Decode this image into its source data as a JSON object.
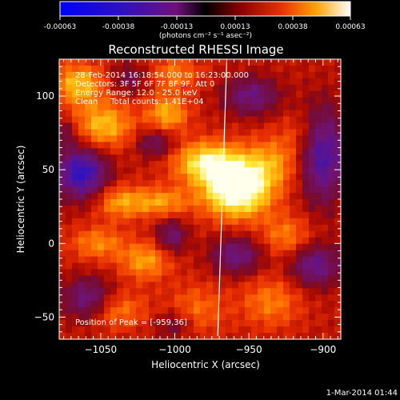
{
  "colorbar": {
    "ticks": [
      "-0.00063",
      "-0.00038",
      "-0.00013",
      "0.00013",
      "0.00038",
      "0.00063"
    ],
    "units": "(photons cm⁻² s⁻¹ asec⁻²)",
    "range": [
      -0.00063,
      0.00063
    ]
  },
  "chart_data": {
    "type": "heatmap",
    "title": "Reconstructed RHESSI Image",
    "xlabel": "Heliocentric X (arcsec)",
    "ylabel": "Heliocentric Y (arcsec)",
    "xlim": [
      -1078,
      -888
    ],
    "ylim": [
      -65,
      125
    ],
    "x_ticks": [
      {
        "value": -1050,
        "label": "−1050"
      },
      {
        "value": -1000,
        "label": "−1000"
      },
      {
        "value": -950,
        "label": "−950"
      },
      {
        "value": -900,
        "label": "−900"
      }
    ],
    "y_ticks": [
      {
        "value": -50,
        "label": "−50"
      },
      {
        "value": 0,
        "label": "0"
      },
      {
        "value": 50,
        "label": "50"
      },
      {
        "value": 100,
        "label": "100"
      }
    ],
    "info_lines": [
      "28-Feb-2014 16:18:54.000 to 16:23:00.000",
      "Detectors: 3F 5F 6F 7F 8F 9F, Att 0",
      "Energy Range: 12.0 - 25.0 keV",
      "Clean     Total counts: 1.41E+04"
    ],
    "peak_label": "Position of Peak = [-959,36]",
    "peak": {
      "x": -959,
      "y": 36
    },
    "limb_line": {
      "x_top": -965,
      "x_bottom": -971
    },
    "colormap": "red-temperature",
    "blobs": [
      {
        "x": -958,
        "y": 36,
        "sx": 16,
        "sy": 13,
        "v": 1.0
      },
      {
        "x": -978,
        "y": 55,
        "sx": 16,
        "sy": 10,
        "v": 0.7
      },
      {
        "x": -935,
        "y": 55,
        "sx": 14,
        "sy": 12,
        "v": 0.4
      },
      {
        "x": -1010,
        "y": 28,
        "sx": 14,
        "sy": 7,
        "v": 0.45
      },
      {
        "x": -1038,
        "y": 28,
        "sx": 11,
        "sy": 8,
        "v": 0.42
      },
      {
        "x": -1048,
        "y": 80,
        "sx": 14,
        "sy": 11,
        "v": 0.55
      },
      {
        "x": -1005,
        "y": 88,
        "sx": 10,
        "sy": 9,
        "v": 0.5
      },
      {
        "x": -1065,
        "y": 108,
        "sx": 12,
        "sy": 10,
        "v": 0.55
      },
      {
        "x": -1000,
        "y": 115,
        "sx": 12,
        "sy": 8,
        "v": 0.35
      },
      {
        "x": -1052,
        "y": 0,
        "sx": 13,
        "sy": 8,
        "v": 0.38
      },
      {
        "x": -1020,
        "y": -12,
        "sx": 12,
        "sy": 9,
        "v": 0.45
      },
      {
        "x": -925,
        "y": 5,
        "sx": 12,
        "sy": 10,
        "v": 0.35
      },
      {
        "x": -1040,
        "y": -45,
        "sx": 14,
        "sy": 9,
        "v": 0.38
      },
      {
        "x": -985,
        "y": -45,
        "sx": 14,
        "sy": 12,
        "v": 0.3
      },
      {
        "x": -935,
        "y": -40,
        "sx": 14,
        "sy": 12,
        "v": 0.35
      },
      {
        "x": -915,
        "y": 75,
        "sx": 10,
        "sy": 10,
        "v": 0.2
      },
      {
        "x": -1063,
        "y": 48,
        "sx": 12,
        "sy": 12,
        "v": -0.85
      },
      {
        "x": -1058,
        "y": -38,
        "sx": 12,
        "sy": 10,
        "v": -0.55
      },
      {
        "x": -900,
        "y": 60,
        "sx": 11,
        "sy": 22,
        "v": -0.7
      },
      {
        "x": -948,
        "y": 100,
        "sx": 13,
        "sy": 9,
        "v": -0.5
      },
      {
        "x": -1013,
        "y": 68,
        "sx": 9,
        "sy": 7,
        "v": -0.4
      },
      {
        "x": -958,
        "y": -8,
        "sx": 12,
        "sy": 9,
        "v": -0.5
      },
      {
        "x": -1002,
        "y": 5,
        "sx": 7,
        "sy": 8,
        "v": -0.45
      },
      {
        "x": -905,
        "y": -15,
        "sx": 12,
        "sy": 10,
        "v": -0.55
      },
      {
        "x": -1075,
        "y": 75,
        "sx": 7,
        "sy": 7,
        "v": -0.3
      },
      {
        "x": -1030,
        "y": 112,
        "sx": 9,
        "sy": 7,
        "v": -0.3
      },
      {
        "x": -1000,
        "y": -55,
        "sx": 9,
        "sy": 7,
        "v": -0.3
      }
    ]
  },
  "footer": {
    "date": "1-Mar-2014 01:44"
  }
}
